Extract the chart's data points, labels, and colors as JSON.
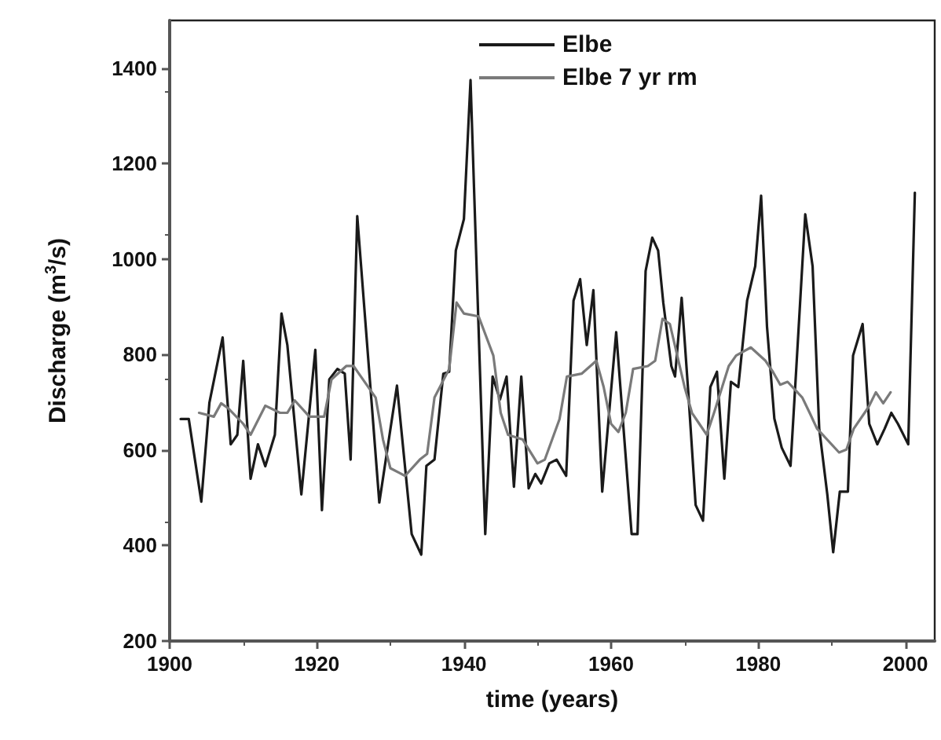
{
  "chart_data": {
    "type": "line",
    "xlabel": "time (years)",
    "ylabel": "Discharge (m$^{3}$/s)",
    "xlim": [
      1900,
      2004
    ],
    "xticks": [
      1900,
      1920,
      1940,
      1960,
      1980,
      2000
    ],
    "ylim": [
      200,
      1500
    ],
    "yticks": [
      200,
      400,
      600,
      800,
      1000,
      1200,
      1400
    ],
    "grid": false,
    "legend": "top",
    "marker": "none",
    "line_style": "solid",
    "series": [
      {
        "name": "Elbe",
        "color": "#1a1a1a",
        "x": [
          1901.5,
          1902.6,
          1904.3,
          1905.4,
          1907.2,
          1908.3,
          1909.2,
          1910,
          1911,
          1912,
          1913,
          1914.3,
          1915.2,
          1916,
          1917.9,
          1919.8,
          1920.7,
          1921.7,
          1922.8,
          1923.8,
          1924.6,
          1925.5,
          1928.5,
          1930.9,
          1932.9,
          1934.2,
          1934.9,
          1936,
          1937.2,
          1938,
          1938.9,
          1940,
          1940.9,
          1942.9,
          1943.9,
          1944.9,
          1945.8,
          1946.8,
          1947.8,
          1948.8,
          1949.7,
          1950.5,
          1951.6,
          1952.6,
          1953.9,
          1954.9,
          1955.8,
          1956.7,
          1957.6,
          1958.8,
          1960.7,
          1961.7,
          1962.8,
          1963.6,
          1964.7,
          1965.6,
          1966.4,
          1967.1,
          1968.2,
          1968.7,
          1969.6,
          1970.5,
          1971.5,
          1972.5,
          1973.5,
          1974.4,
          1975.4,
          1976.3,
          1977.3,
          1978.5,
          1979.6,
          1980.4,
          1981.2,
          1982.2,
          1983.2,
          1984.4,
          1985.2,
          1986.4,
          1987.4,
          1988.3,
          1989.4,
          1990.2,
          1991.1,
          1992.2,
          1992.9,
          1994.2,
          1995.1,
          1996.2,
          1997.2,
          1998.1,
          1999,
          2000.4,
          2001.3
        ],
        "values": [
          665,
          665,
          492,
          699,
          836,
          612,
          632,
          787,
          540,
          612,
          566,
          632,
          886,
          820,
          507,
          810,
          474,
          748,
          770,
          760,
          580,
          1090,
          490,
          735,
          424,
          381,
          567,
          580,
          760,
          764,
          1018,
          1084,
          1375,
          424,
          754,
          706,
          754,
          523,
          754,
          520,
          550,
          530,
          572,
          580,
          546,
          913,
          958,
          820,
          935,
          513,
          847,
          645,
          424,
          424,
          975,
          1045,
          1018,
          909,
          776,
          754,
          919,
          721,
          485,
          452,
          732,
          764,
          540,
          743,
          732,
          913,
          985,
          1133,
          859,
          666,
          605,
          567,
          776,
          1094,
          985,
          645,
          507,
          386,
          513,
          513,
          798,
          864,
          655,
          612,
          645,
          678,
          655,
          612,
          1139
        ]
      },
      {
        "name": "Elbe 7 yr rm",
        "color": "#7a7a7a",
        "x": [
          1904,
          1906,
          1907,
          1908,
          1910,
          1911,
          1913,
          1915,
          1916,
          1917,
          1919,
          1921,
          1922,
          1924,
          1925,
          1926,
          1928,
          1929,
          1930,
          1932,
          1934,
          1935,
          1936,
          1938,
          1939,
          1940,
          1942,
          1944,
          1945,
          1946,
          1948,
          1950,
          1951,
          1953,
          1954,
          1956,
          1958,
          1959,
          1960,
          1961,
          1962,
          1963,
          1965,
          1966,
          1967,
          1968,
          1970,
          1971,
          1972,
          1973,
          1974,
          1976,
          1977,
          1979,
          1981,
          1982,
          1983,
          1984,
          1986,
          1987,
          1988,
          1991,
          1992,
          1993,
          1995,
          1996,
          1997,
          1998
        ],
        "values": [
          678,
          670,
          698,
          687,
          655,
          632,
          693,
          678,
          678,
          704,
          670,
          670,
          748,
          776,
          776,
          754,
          710,
          622,
          562,
          546,
          580,
          592,
          710,
          770,
          909,
          886,
          880,
          798,
          678,
          632,
          622,
          572,
          580,
          665,
          754,
          760,
          787,
          732,
          655,
          638,
          678,
          770,
          776,
          787,
          875,
          864,
          732,
          678,
          655,
          632,
          678,
          776,
          798,
          815,
          787,
          764,
          737,
          743,
          710,
          678,
          645,
          595,
          601,
          645,
          690,
          721,
          698,
          721
        ]
      }
    ]
  }
}
